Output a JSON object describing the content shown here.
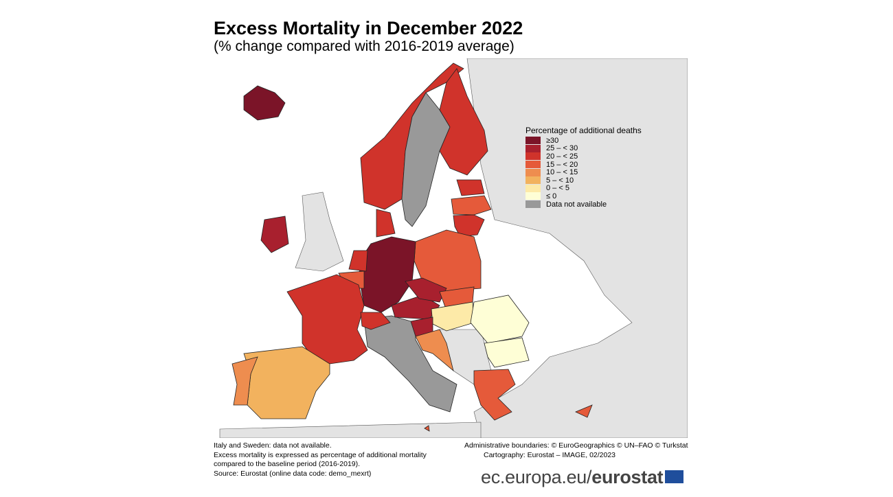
{
  "title": "Excess Mortality in December 2022",
  "subtitle": "(% change compared with 2016-2019 average)",
  "legend": {
    "title": "Percentage of additional deaths",
    "classes": [
      {
        "label": "≥30",
        "color": "#7b1428"
      },
      {
        "label": "25 – < 30",
        "color": "#a8202e"
      },
      {
        "label": "20 – < 25",
        "color": "#d0332b"
      },
      {
        "label": "15 – < 20",
        "color": "#e55a3a"
      },
      {
        "label": "10 – < 15",
        "color": "#ee8d4f"
      },
      {
        "label": "5 – < 10",
        "color": "#f2b25e"
      },
      {
        "label": "0 – < 5",
        "color": "#fdeaa8"
      },
      {
        "label": "≤ 0",
        "color": "#fefed6"
      },
      {
        "label": "Data not available",
        "color": "#999999"
      }
    ]
  },
  "countries": {
    "Iceland": 0,
    "Norway": 2,
    "Sweden": 8,
    "Finland": 2,
    "Estonia": 2,
    "Latvia": 3,
    "Lithuania": 2,
    "Poland": 3,
    "Germany": 0,
    "Denmark": 2,
    "Ireland": 1,
    "Netherlands": 2,
    "Belgium": 3,
    "France": 2,
    "Spain": 5,
    "Portugal": 4,
    "Italy": 8,
    "Switzerland": 2,
    "Austria": 1,
    "Czechia": 1,
    "Slovakia": 3,
    "Hungary": 6,
    "Slovenia": 1,
    "Croatia": 4,
    "Romania": 7,
    "Bulgaria": 7,
    "Greece": 3,
    "Cyprus": 3,
    "Malta": 3
  },
  "notes": [
    "Italy and Sweden: data not available.",
    "Excess mortality is expressed as percentage of additional mortality",
    "compared to the baseline period (2016-2019).",
    "Source: Eurostat (online data code: demo_mexrt)"
  ],
  "credits": [
    "Administrative boundaries: © EuroGeographics © UN–FAO © Turkstat",
    "Cartography: Eurostat – IMAGE, 02/2023"
  ],
  "brand": {
    "domain": "ec.europa.eu/",
    "name": "eurostat"
  }
}
